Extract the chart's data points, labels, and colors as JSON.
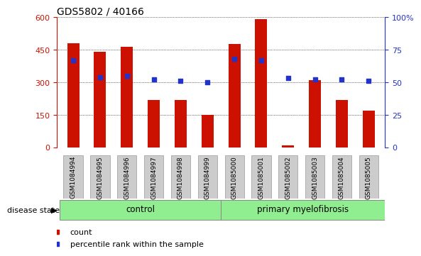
{
  "title": "GDS5802 / 40166",
  "samples": [
    "GSM1084994",
    "GSM1084995",
    "GSM1084996",
    "GSM1084997",
    "GSM1084998",
    "GSM1084999",
    "GSM1085000",
    "GSM1085001",
    "GSM1085002",
    "GSM1085003",
    "GSM1085004",
    "GSM1085005"
  ],
  "counts": [
    480,
    440,
    462,
    218,
    218,
    148,
    478,
    590,
    8,
    310,
    218,
    168
  ],
  "percentiles": [
    67,
    54,
    55,
    52,
    51,
    50,
    68,
    67,
    53,
    52,
    52,
    51
  ],
  "bar_color": "#cc1100",
  "dot_color": "#2233cc",
  "ylim_left": [
    0,
    600
  ],
  "ylim_right": [
    0,
    100
  ],
  "yticks_left": [
    0,
    150,
    300,
    450,
    600
  ],
  "yticks_right": [
    0,
    25,
    50,
    75,
    100
  ],
  "ytick_labels_right": [
    "0",
    "25",
    "50",
    "75",
    "100%"
  ],
  "control_label": "control",
  "myelofibrosis_label": "primary myelofibrosis",
  "disease_state_label": "disease state",
  "legend_count_label": "count",
  "legend_percentile_label": "percentile rank within the sample",
  "control_color": "#90ee90",
  "myelofibrosis_color": "#90ee90",
  "tick_label_bg": "#cccccc",
  "bar_width": 0.45
}
